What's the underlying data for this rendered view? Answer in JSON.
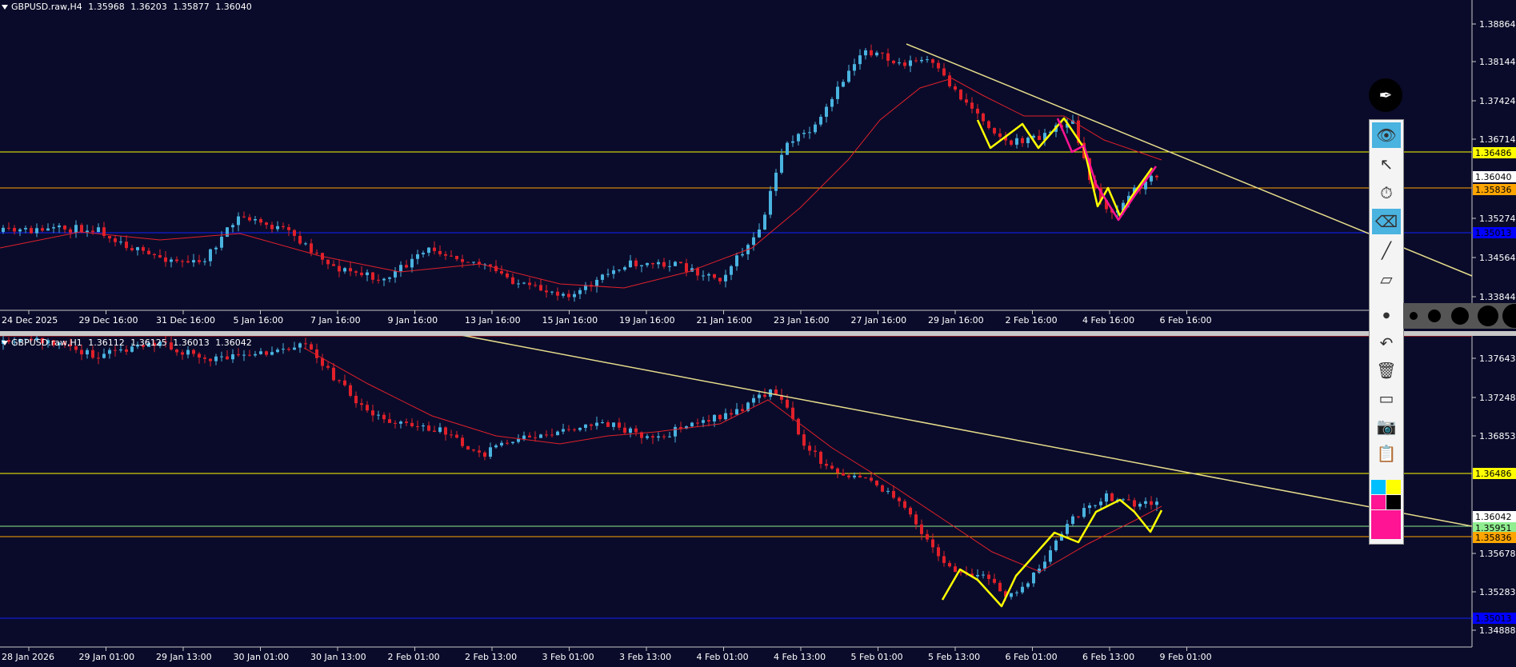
{
  "top_chart": {
    "symbol": "GBPUSD.raw,H4",
    "ohlc": [
      "1.35968",
      "1.36203",
      "1.35877",
      "1.36040"
    ],
    "price_ticks": [
      "1.38864",
      "1.38144",
      "1.37424",
      "1.36714",
      "1.35274",
      "1.34564",
      "1.33844"
    ],
    "time_ticks": [
      "24 Dec 2025",
      "29 Dec 16:00",
      "31 Dec 16:00",
      "5 Jan 16:00",
      "7 Jan 16:00",
      "9 Jan 16:00",
      "13 Jan 16:00",
      "15 Jan 16:00",
      "19 Jan 16:00",
      "21 Jan 16:00",
      "23 Jan 16:00",
      "27 Jan 16:00",
      "29 Jan 16:00",
      "2 Feb 16:00",
      "4 Feb 16:00",
      "6 Feb 16:00"
    ],
    "level_labels": [
      {
        "text": "1.36486",
        "color": "#ffff00"
      },
      {
        "text": "1.36040",
        "color": "#ffffff"
      },
      {
        "text": "1.35836",
        "color": "#ffa500"
      },
      {
        "text": "1.35013",
        "color": "#0000ff"
      }
    ]
  },
  "bottom_chart": {
    "symbol": "GBPUSD.raw,H1",
    "ohlc": [
      "1.36112",
      "1.36125",
      "1.36013",
      "1.36042"
    ],
    "price_ticks": [
      "1.37643",
      "1.37248",
      "1.36853",
      "1.35678",
      "1.35283",
      "1.34888"
    ],
    "time_ticks": [
      "28 Jan 2026",
      "29 Jan 01:00",
      "29 Jan 13:00",
      "30 Jan 01:00",
      "30 Jan 13:00",
      "2 Feb 01:00",
      "2 Feb 13:00",
      "3 Feb 01:00",
      "3 Feb 13:00",
      "4 Feb 01:00",
      "4 Feb 13:00",
      "5 Feb 01:00",
      "5 Feb 13:00",
      "6 Feb 01:00",
      "6 Feb 13:00",
      "9 Feb 01:00"
    ],
    "level_labels": [
      {
        "text": "1.36486",
        "color": "#ffff00"
      },
      {
        "text": "1.36042",
        "color": "#ffffff"
      },
      {
        "text": "1.35951",
        "color": "#90ee90"
      },
      {
        "text": "1.35836",
        "color": "#ffa500"
      },
      {
        "text": "1.35013",
        "color": "#0000ff"
      }
    ]
  },
  "colors": {
    "background": "#0a0b2a",
    "bull_candle": "#4ab3e0",
    "bear_candle": "#e0202a",
    "moving_average": "#e0202a",
    "trendline": "#e6dc8c",
    "zigzag": "#ffff00",
    "resistance_line": "#ffff00",
    "support_line": "#ffa500",
    "deep_support_line": "#0000ff"
  },
  "toolbar": {
    "tools": [
      "pen-icon",
      "eye-icon",
      "cursor-icon",
      "clock-icon",
      "eraser-icon",
      "line-icon",
      "eraser-icon",
      "dot-icon",
      "undo-icon",
      "trash-icon",
      "screen-icon",
      "camera-icon",
      "clipboard-icon"
    ],
    "palette": [
      "#00bfff",
      "#ffff00",
      "#ff1493",
      "#000000",
      "#ff1493",
      "#ff1493"
    ]
  }
}
